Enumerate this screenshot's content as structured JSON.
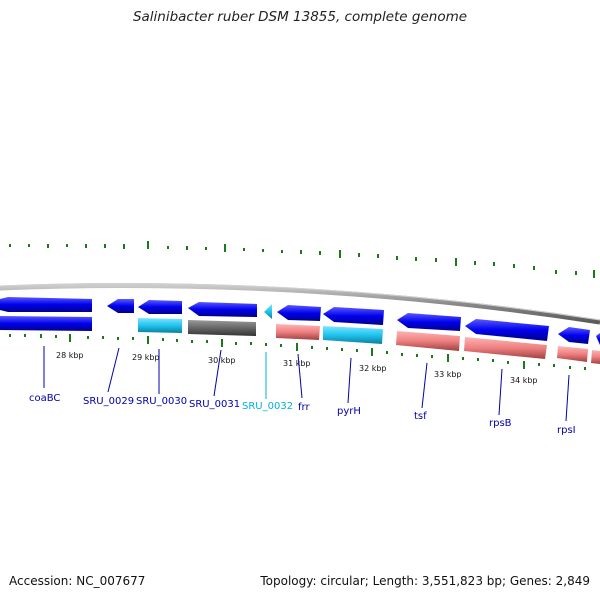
{
  "title": "Salinibacter ruber DSM 13855, complete genome",
  "accession": "Accession: NC_007677",
  "summary": "Topology: circular; Length: 3,551,823 bp; Genes: 2,849",
  "kbp_labels": [
    "28 kbp",
    "29 kbp",
    "30 kbp",
    "31 kbp",
    "32 kbp",
    "33 kbp",
    "34 kbp"
  ],
  "gene_labels": [
    "coaBC",
    "SRU_0029",
    "SRU_0030",
    "SRU_0031",
    "SRU_0032",
    "frr",
    "pyrH",
    "tsf",
    "rpsB",
    "rpsI"
  ],
  "colors": {
    "gene_blue": "#0000ee",
    "cyan": "#1fc4ee",
    "gray": "#666666",
    "salmon": "#ee8080",
    "label_blue": "#0000aa",
    "label_cyan": "#00b0e0",
    "tick_green": "#1a7a1a",
    "backbone": "#888888"
  }
}
